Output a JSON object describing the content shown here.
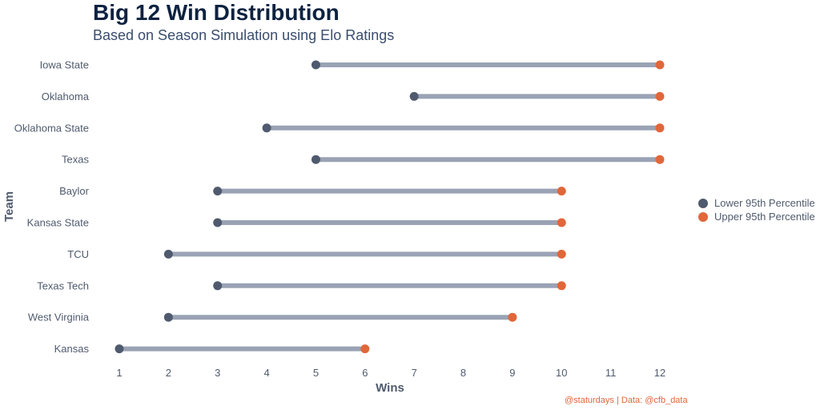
{
  "header": {
    "title": "Big 12 Win Distribution",
    "subtitle": "Based on Season Simulation using Elo Ratings"
  },
  "caption": "@staturdays | Data: @cfb_data",
  "colors": {
    "lower": "#4f5a6e",
    "upper": "#e0673a",
    "segment": "#9aa3b5",
    "caption": "#e0673a"
  },
  "legend": {
    "placement": "right",
    "items": [
      {
        "label": "Lower 95th Percentile",
        "color": "#4f5a6e"
      },
      {
        "label": "Upper 95th Percentile",
        "color": "#e0673a"
      }
    ]
  },
  "chart_data": {
    "type": "dumbbell",
    "title": "Big 12 Win Distribution",
    "subtitle": "Based on Season Simulation using Elo Ratings",
    "xlabel": "Wins",
    "ylabel": "Team",
    "xlim": [
      1,
      12
    ],
    "x_ticks": [
      1,
      2,
      3,
      4,
      5,
      6,
      7,
      8,
      9,
      10,
      11,
      12
    ],
    "grid": false,
    "legend_placement": "right",
    "categories": [
      "Iowa State",
      "Oklahoma",
      "Oklahoma State",
      "Texas",
      "Baylor",
      "Kansas State",
      "TCU",
      "Texas Tech",
      "West Virginia",
      "Kansas"
    ],
    "series": [
      {
        "name": "Lower 95th Percentile",
        "values": [
          5,
          7,
          4,
          5,
          3,
          3,
          2,
          3,
          2,
          1
        ]
      },
      {
        "name": "Upper 95th Percentile",
        "values": [
          12,
          12,
          12,
          12,
          10,
          10,
          10,
          10,
          9,
          6
        ]
      }
    ]
  }
}
